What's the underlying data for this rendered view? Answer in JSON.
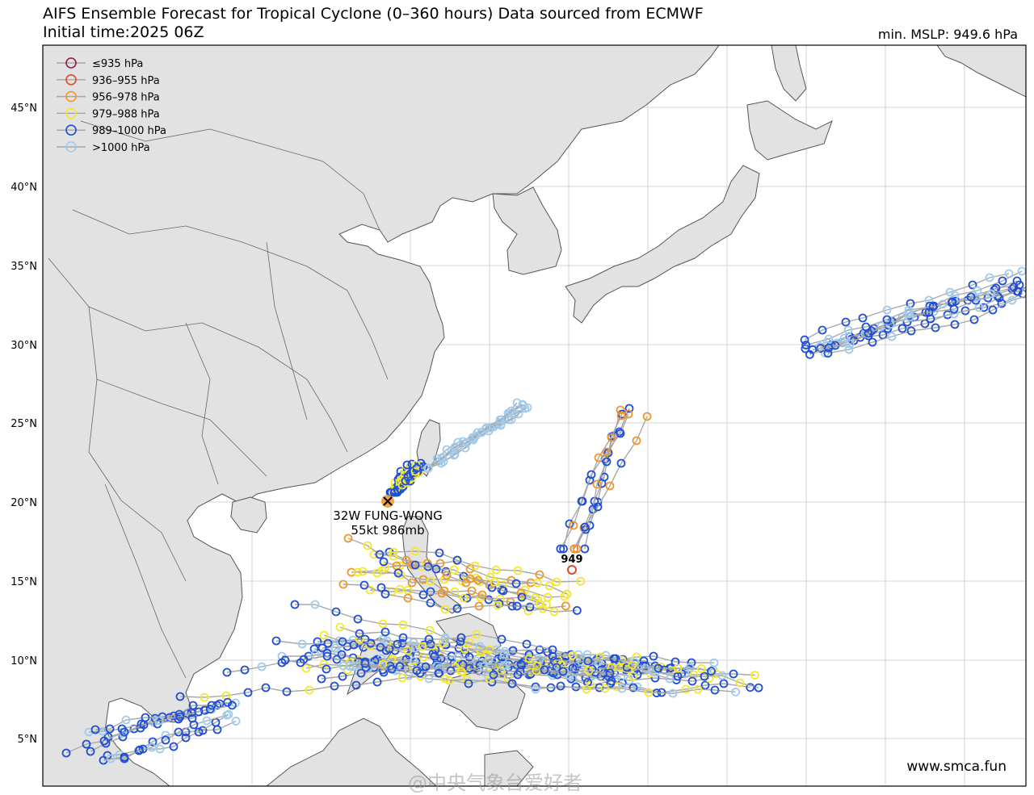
{
  "header": {
    "title_line1": "AIFS Ensemble Forecast for Tropical Cyclone (0–360 hours) Data sourced from ECMWF",
    "title_line2": "Initial time:2025          06Z",
    "min_mslp": "min. MSLP: 949.6 hPa"
  },
  "legend": [
    {
      "label": "≤935 hPa",
      "color": "#8b1a4a"
    },
    {
      "label": "936–955 hPa",
      "color": "#e0482a"
    },
    {
      "label": "956–978 hPa",
      "color": "#f0962a"
    },
    {
      "label": "979–988 hPa",
      "color": "#f4e82e"
    },
    {
      "label": "989–1000 hPa",
      "color": "#1f4fd6"
    },
    {
      "label": ">1000 hPa",
      "color": "#9fcbef"
    }
  ],
  "lat_labels": [
    "45°N",
    "40°N",
    "35°N",
    "30°N",
    "25°N",
    "20°N",
    "15°N",
    "10°N",
    "5°N"
  ],
  "storm": {
    "name": "32W FUNG-WONG",
    "intensity": "55kt 986mb",
    "min_marker": "949"
  },
  "footer": {
    "credit": "www.smca.fun",
    "watermark": "@中央气象台爱好者"
  },
  "colors": {
    "land": "#e2e2e2",
    "ocean": "#ffffff",
    "track": "#a8a8a8",
    "grid": "#d0d0d0"
  }
}
